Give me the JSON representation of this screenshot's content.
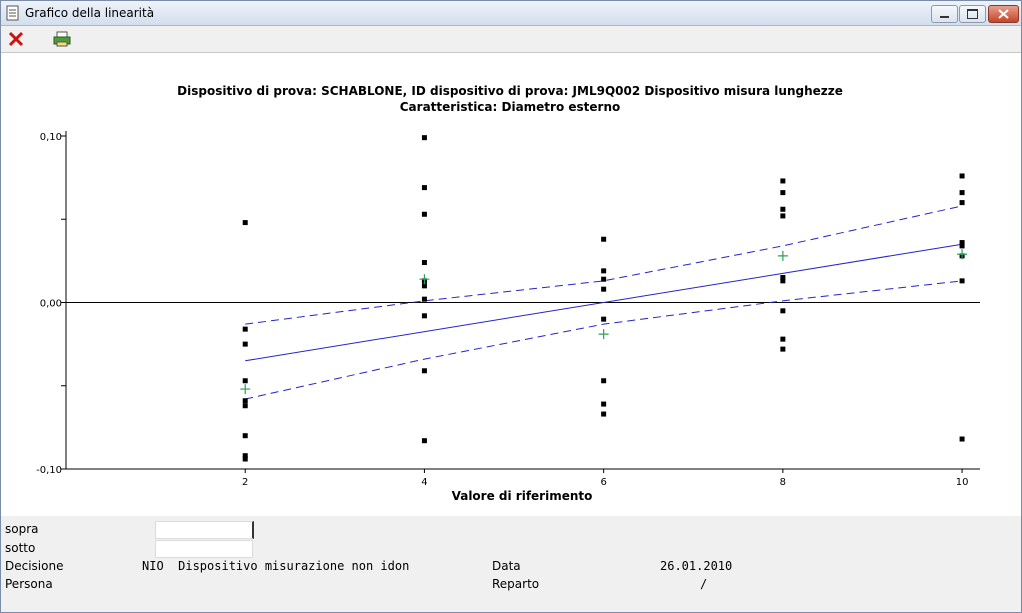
{
  "window": {
    "title": "Grafico della linearità"
  },
  "chart_data": {
    "type": "scatter",
    "title": "Dispositivo di prova: SCHABLONE, ID dispositivo di prova: JML9Q002 Dispositivo misura lunghezze",
    "subtitle": "Caratteristica: Diametro esterno",
    "x_label": "Valore di riferimento",
    "xlim": [
      0,
      10.2
    ],
    "ylim": [
      -0.1,
      0.1
    ],
    "xticks": [
      2,
      4,
      6,
      8,
      10
    ],
    "yticks": [
      {
        "value": -0.1,
        "label": "-0,10"
      },
      {
        "value": 0,
        "label": "0,00"
      },
      {
        "value": 0.1,
        "label": "0,10"
      }
    ],
    "yminorticks": [
      -0.05,
      0.05
    ],
    "zero_line": true,
    "points": {
      "color": "#000000",
      "x": [
        2,
        2,
        2,
        2,
        2,
        2,
        2,
        2,
        2,
        4,
        4,
        4,
        4,
        4,
        4,
        4,
        4,
        4,
        4,
        6,
        6,
        6,
        6,
        6,
        6,
        6,
        6,
        8,
        8,
        8,
        8,
        8,
        8,
        8,
        8,
        8,
        10,
        10,
        10,
        10,
        10,
        10,
        10,
        10
      ],
      "values": [
        0.048,
        -0.016,
        -0.025,
        -0.047,
        -0.059,
        -0.062,
        -0.08,
        -0.092,
        -0.094,
        0.099,
        0.069,
        0.053,
        0.024,
        0.013,
        0.01,
        0.002,
        -0.008,
        -0.041,
        -0.083,
        0.038,
        0.019,
        0.014,
        0.008,
        -0.01,
        -0.047,
        -0.061,
        -0.067,
        0.073,
        0.066,
        0.056,
        0.052,
        0.015,
        0.013,
        -0.005,
        -0.022,
        -0.028,
        0.076,
        0.066,
        0.06,
        0.036,
        0.034,
        0.028,
        0.013,
        -0.082
      ]
    },
    "means": {
      "color": "#2e9e5e",
      "x": [
        2,
        4,
        6,
        8,
        10
      ],
      "values": [
        -0.052,
        0.014,
        -0.019,
        0.028,
        0.029
      ]
    },
    "fit": {
      "color": "#2424c8",
      "x": [
        2,
        10
      ],
      "values": [
        -0.035,
        0.035
      ]
    },
    "upper": {
      "color": "#2424c8",
      "dashed": true,
      "x": [
        2,
        4,
        6,
        8,
        10
      ],
      "values": [
        -0.013,
        0.001,
        0.013,
        0.034,
        0.058
      ]
    },
    "lower": {
      "color": "#2424c8",
      "dashed": true,
      "x": [
        2,
        4,
        6,
        8,
        10
      ],
      "values": [
        -0.058,
        -0.034,
        -0.013,
        0.001,
        0.013
      ]
    }
  },
  "footer": {
    "above_label": "sopra",
    "below_label": "sotto",
    "decision_label": "Decisione",
    "decision_value": "NIO  Dispositivo misurazione non idon",
    "person_label": "Persona",
    "date_label": "Data",
    "date_value": "26.01.2010",
    "department_label": "Reparto",
    "department_value": "/"
  }
}
